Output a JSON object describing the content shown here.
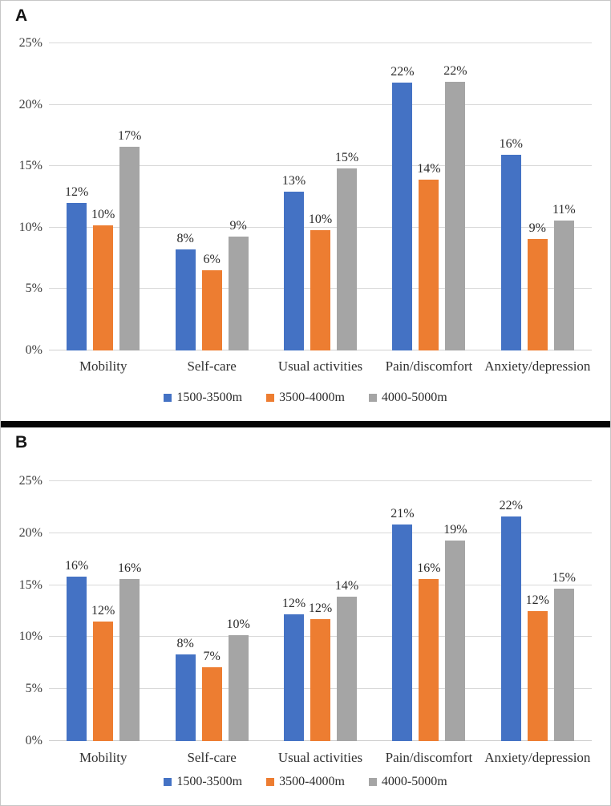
{
  "figure": {
    "panel_a_label": "A",
    "panel_b_label": "B",
    "background": "#ffffff",
    "border_color": "#c6c6c6",
    "divider_color": "#060606"
  },
  "colors": {
    "series_blue": "#4472C4",
    "series_orange": "#ED7D31",
    "series_gray": "#A5A5A5",
    "gridline": "#d9d9d9",
    "tick_text": "#3d3d3d",
    "label_text": "#2b2b2b"
  },
  "chart_data": [
    {
      "panel_label": "A",
      "type": "bar",
      "title": "",
      "xlabel": "",
      "ylabel": "",
      "grid": true,
      "legend_position": "bottom",
      "ylim": [
        0,
        25
      ],
      "yticks": [
        {
          "value": 0,
          "label": "0%"
        },
        {
          "value": 5,
          "label": "5%"
        },
        {
          "value": 10,
          "label": "10%"
        },
        {
          "value": 15,
          "label": "15%"
        },
        {
          "value": 20,
          "label": "20%"
        },
        {
          "value": 25,
          "label": "25%"
        }
      ],
      "categories": [
        "Mobility",
        "Self-care",
        "Usual activities",
        "Pain/discomfort",
        "Anxiety/depression"
      ],
      "series": [
        {
          "name": "1500-3500m",
          "color": "#4472C4",
          "values": [
            12.0,
            8.2,
            12.9,
            21.8,
            15.9
          ],
          "labels": [
            "12%",
            "8%",
            "13%",
            "22%",
            "16%"
          ]
        },
        {
          "name": "3500-4000m",
          "color": "#ED7D31",
          "values": [
            10.2,
            6.5,
            9.8,
            13.9,
            9.1
          ],
          "labels": [
            "10%",
            "6%",
            "10%",
            "14%",
            "9%"
          ]
        },
        {
          "name": "4000-5000m",
          "color": "#A5A5A5",
          "values": [
            16.6,
            9.3,
            14.8,
            21.9,
            10.6
          ],
          "labels": [
            "17%",
            "9%",
            "15%",
            "22%",
            "11%"
          ]
        }
      ]
    },
    {
      "panel_label": "B",
      "type": "bar",
      "title": "",
      "xlabel": "",
      "ylabel": "",
      "grid": true,
      "legend_position": "bottom",
      "ylim": [
        0,
        25
      ],
      "yticks": [
        {
          "value": 0,
          "label": "0%"
        },
        {
          "value": 5,
          "label": "5%"
        },
        {
          "value": 10,
          "label": "10%"
        },
        {
          "value": 15,
          "label": "15%"
        },
        {
          "value": 20,
          "label": "20%"
        },
        {
          "value": 25,
          "label": "25%"
        }
      ],
      "categories": [
        "Mobility",
        "Self-care",
        "Usual activities",
        "Pain/discomfort",
        "Anxiety/depression"
      ],
      "series": [
        {
          "name": "1500-3500m",
          "color": "#4472C4",
          "values": [
            15.8,
            8.3,
            12.2,
            20.8,
            21.6
          ],
          "labels": [
            "16%",
            "8%",
            "12%",
            "21%",
            "22%"
          ]
        },
        {
          "name": "3500-4000m",
          "color": "#ED7D31",
          "values": [
            11.5,
            7.1,
            11.7,
            15.6,
            12.5
          ],
          "labels": [
            "12%",
            "7%",
            "12%",
            "16%",
            "12%"
          ]
        },
        {
          "name": "4000-5000m",
          "color": "#A5A5A5",
          "values": [
            15.6,
            10.2,
            13.9,
            19.3,
            14.7
          ],
          "labels": [
            "16%",
            "10%",
            "14%",
            "19%",
            "15%"
          ]
        }
      ]
    }
  ]
}
